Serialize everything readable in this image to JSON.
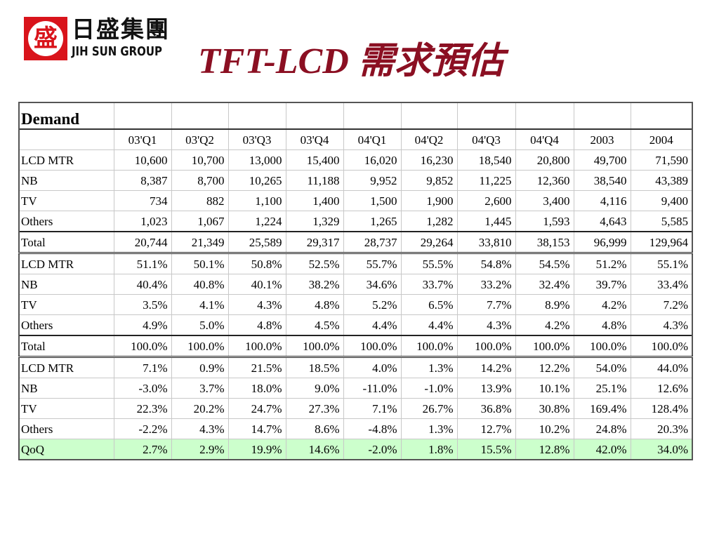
{
  "logo": {
    "mark_glyph": "盛",
    "chinese_name": "日盛集團",
    "english_name": "JIH SUN GROUP",
    "colors": {
      "red": "#d9141b",
      "text": "#111111"
    }
  },
  "title": "TFT-LCD 需求預估",
  "title_color": "#8b0f22",
  "table": {
    "corner_label": "Demand",
    "columns": [
      "03'Q1",
      "03'Q2",
      "03'Q3",
      "03'Q4",
      "04'Q1",
      "04'Q2",
      "04'Q3",
      "04'Q4",
      "2003",
      "2004"
    ],
    "units": [
      {
        "label": "LCD MTR",
        "values": [
          "10,600",
          "10,700",
          "13,000",
          "15,400",
          "16,020",
          "16,230",
          "18,540",
          "20,800",
          "49,700",
          "71,590"
        ]
      },
      {
        "label": "NB",
        "values": [
          "8,387",
          "8,700",
          "10,265",
          "11,188",
          "9,952",
          "9,852",
          "11,225",
          "12,360",
          "38,540",
          "43,389"
        ]
      },
      {
        "label": "TV",
        "values": [
          "734",
          "882",
          "1,100",
          "1,400",
          "1,500",
          "1,900",
          "2,600",
          "3,400",
          "4,116",
          "9,400"
        ]
      },
      {
        "label": "Others",
        "values": [
          "1,023",
          "1,067",
          "1,224",
          "1,329",
          "1,265",
          "1,282",
          "1,445",
          "1,593",
          "4,643",
          "5,585"
        ]
      },
      {
        "label": "Total",
        "values": [
          "20,744",
          "21,349",
          "25,589",
          "29,317",
          "28,737",
          "29,264",
          "33,810",
          "38,153",
          "96,999",
          "129,964"
        ]
      }
    ],
    "share": [
      {
        "label": "LCD MTR",
        "values": [
          "51.1%",
          "50.1%",
          "50.8%",
          "52.5%",
          "55.7%",
          "55.5%",
          "54.8%",
          "54.5%",
          "51.2%",
          "55.1%"
        ]
      },
      {
        "label": "NB",
        "values": [
          "40.4%",
          "40.8%",
          "40.1%",
          "38.2%",
          "34.6%",
          "33.7%",
          "33.2%",
          "32.4%",
          "39.7%",
          "33.4%"
        ]
      },
      {
        "label": "TV",
        "values": [
          "3.5%",
          "4.1%",
          "4.3%",
          "4.8%",
          "5.2%",
          "6.5%",
          "7.7%",
          "8.9%",
          "4.2%",
          "7.2%"
        ]
      },
      {
        "label": "Others",
        "values": [
          "4.9%",
          "5.0%",
          "4.8%",
          "4.5%",
          "4.4%",
          "4.4%",
          "4.3%",
          "4.2%",
          "4.8%",
          "4.3%"
        ]
      },
      {
        "label": "Total",
        "values": [
          "100.0%",
          "100.0%",
          "100.0%",
          "100.0%",
          "100.0%",
          "100.0%",
          "100.0%",
          "100.0%",
          "100.0%",
          "100.0%"
        ]
      }
    ],
    "growth": [
      {
        "label": "LCD MTR",
        "values": [
          "7.1%",
          "0.9%",
          "21.5%",
          "18.5%",
          "4.0%",
          "1.3%",
          "14.2%",
          "12.2%",
          "54.0%",
          "44.0%"
        ]
      },
      {
        "label": "NB",
        "values": [
          "-3.0%",
          "3.7%",
          "18.0%",
          "9.0%",
          "-11.0%",
          "-1.0%",
          "13.9%",
          "10.1%",
          "25.1%",
          "12.6%"
        ]
      },
      {
        "label": "TV",
        "values": [
          "22.3%",
          "20.2%",
          "24.7%",
          "27.3%",
          "7.1%",
          "26.7%",
          "36.8%",
          "30.8%",
          "169.4%",
          "128.4%"
        ]
      },
      {
        "label": "Others",
        "values": [
          "-2.2%",
          "4.3%",
          "14.7%",
          "8.6%",
          "-4.8%",
          "1.3%",
          "12.7%",
          "10.2%",
          "24.8%",
          "20.3%"
        ]
      },
      {
        "label": "QoQ",
        "values": [
          "2.7%",
          "2.9%",
          "19.9%",
          "14.6%",
          "-2.0%",
          "1.8%",
          "15.5%",
          "12.8%",
          "42.0%",
          "34.0%"
        ]
      }
    ],
    "qoq_highlight_color": "#ccffcc"
  }
}
